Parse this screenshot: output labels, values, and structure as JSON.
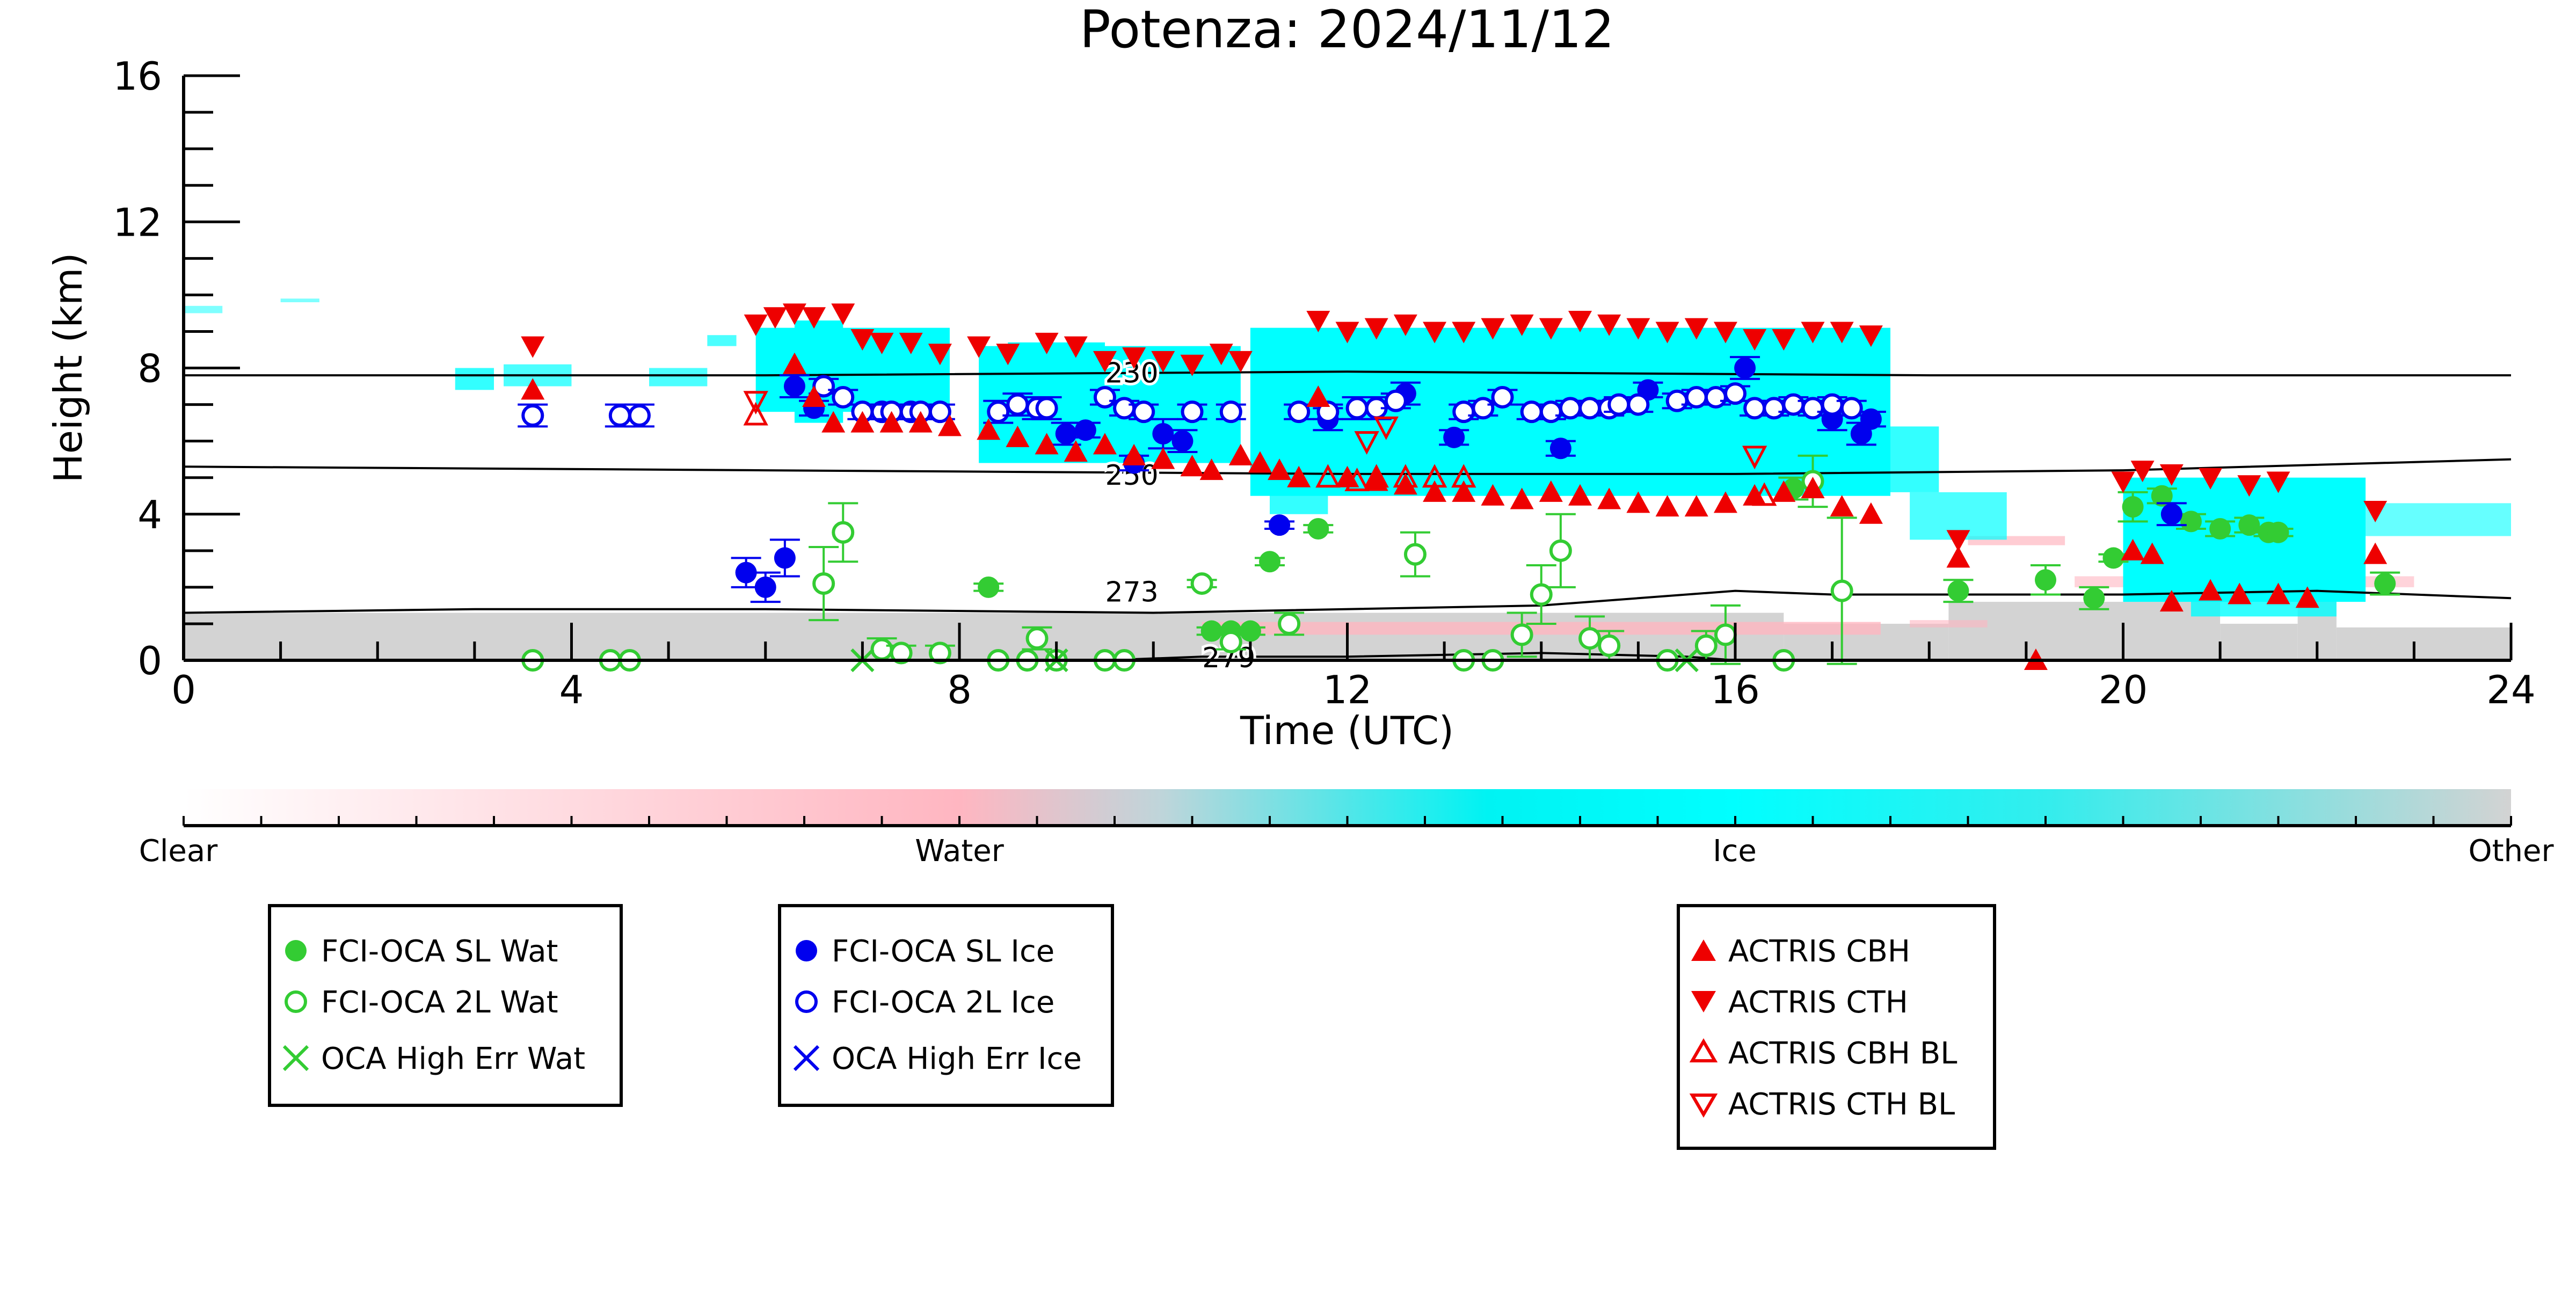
{
  "chart_data": {
    "type": "scatter",
    "title": "Potenza: 2024/11/12",
    "xlabel": "Time (UTC)",
    "ylabel": "Height (km)",
    "xlim": [
      0,
      24
    ],
    "ylim": [
      0,
      16
    ],
    "x_ticks": [
      "0",
      "4",
      "8",
      "12",
      "16",
      "20",
      "24"
    ],
    "y_ticks": [
      "0",
      "4",
      "8",
      "12",
      "16"
    ],
    "grid": false,
    "colorbar": {
      "labels": [
        "Clear",
        "Water",
        "Ice",
        "Other"
      ],
      "colors": [
        "#ffffff",
        "#ffb6c1",
        "#00ffff",
        "#d3d3d3"
      ]
    },
    "isotherms": [
      {
        "label": "230",
        "points": [
          [
            0,
            7.8
          ],
          [
            6,
            7.8
          ],
          [
            12,
            7.9
          ],
          [
            18,
            7.8
          ],
          [
            24,
            7.8
          ]
        ]
      },
      {
        "label": "250",
        "points": [
          [
            0,
            5.3
          ],
          [
            6,
            5.2
          ],
          [
            12,
            5.1
          ],
          [
            16,
            5.1
          ],
          [
            20,
            5.2
          ],
          [
            24,
            5.5
          ]
        ]
      },
      {
        "label": "273",
        "points": [
          [
            0,
            1.3
          ],
          [
            3,
            1.4
          ],
          [
            6,
            1.4
          ],
          [
            10,
            1.3
          ],
          [
            14,
            1.5
          ],
          [
            16,
            1.9
          ],
          [
            17,
            1.8
          ],
          [
            20,
            1.8
          ],
          [
            22,
            1.9
          ],
          [
            24,
            1.7
          ]
        ]
      },
      {
        "label": "279",
        "points": [
          [
            9.5,
            0
          ],
          [
            10.5,
            0.1
          ],
          [
            12,
            0.1
          ],
          [
            14,
            0.2
          ],
          [
            15.5,
            0.1
          ],
          [
            16,
            0
          ]
        ]
      }
    ],
    "series": [
      {
        "name": "FCI-OCA SL Wat",
        "color": "#33cc33",
        "marker": "filled-circle",
        "x": [
          8.3,
          10.6,
          10.8,
          11.0,
          11.2,
          11.7,
          16.6,
          18.3,
          19.2,
          19.7,
          19.9,
          20.1,
          20.4,
          20.7,
          21.0,
          21.3,
          21.5,
          21.6,
          22.7
        ],
        "y": [
          2.0,
          0.8,
          0.8,
          0.8,
          2.7,
          3.6,
          4.7,
          1.9,
          2.2,
          1.7,
          2.8,
          4.2,
          4.5,
          3.8,
          3.6,
          3.7,
          3.5,
          3.5,
          2.1
        ],
        "err": [
          0.1,
          0.1,
          0.1,
          0.1,
          0.1,
          0.1,
          0.3,
          0.3,
          0.4,
          0.3,
          0.1,
          0.4,
          0.2,
          0.2,
          0.2,
          0.2,
          0.1,
          0.1,
          0.3
        ]
      },
      {
        "name": "FCI-OCA 2L Wat",
        "color": "#33cc33",
        "marker": "open-circle",
        "x": [
          3.6,
          4.4,
          4.6,
          6.6,
          6.8,
          7.2,
          7.4,
          7.8,
          8.4,
          8.7,
          8.8,
          9.0,
          9.5,
          9.7,
          10.5,
          10.8,
          11.4,
          12.7,
          13.2,
          13.5,
          13.8,
          14.0,
          14.2,
          14.5,
          14.7,
          15.3,
          15.7,
          15.9,
          16.5,
          16.8,
          17.1
        ],
        "y": [
          0.0,
          0.0,
          0.0,
          2.1,
          3.5,
          0.3,
          0.2,
          0.2,
          0.0,
          0.0,
          0.6,
          0.0,
          0.0,
          0.0,
          2.1,
          0.5,
          1.0,
          2.9,
          0.0,
          0.0,
          0.7,
          1.8,
          3.0,
          0.6,
          0.4,
          0.0,
          0.4,
          0.7,
          0.0,
          4.9,
          1.9
        ],
        "err": [
          0.0,
          0.0,
          0.0,
          1.0,
          0.8,
          0.3,
          0.2,
          0.2,
          0.0,
          0.0,
          0.3,
          0.0,
          0.0,
          0.0,
          0.1,
          0.2,
          0.3,
          0.6,
          0.0,
          0.0,
          0.6,
          0.8,
          1.0,
          0.6,
          0.4,
          0.0,
          0.4,
          0.8,
          0.0,
          0.7,
          2.0
        ]
      },
      {
        "name": "OCA High Err Wat",
        "color": "#33cc33",
        "marker": "x",
        "x": [
          7.0,
          9.0,
          15.5
        ],
        "y": [
          0.0,
          0.0,
          0.0
        ]
      },
      {
        "name": "FCI-OCA SL Ice",
        "color": "#0000ee",
        "marker": "filled-circle",
        "x": [
          5.8,
          6.0,
          6.2,
          6.3,
          6.5,
          9.1,
          9.3,
          9.8,
          10.1,
          10.3,
          11.3,
          11.8,
          12.6,
          13.1,
          14.2,
          15.1,
          16.1,
          17.0,
          17.3,
          17.4,
          20.5
        ],
        "y": [
          2.4,
          2.0,
          2.8,
          7.5,
          6.9,
          6.2,
          6.3,
          5.4,
          6.2,
          6.0,
          3.7,
          6.6,
          7.3,
          6.1,
          5.8,
          7.4,
          8.0,
          6.6,
          6.2,
          6.6,
          4.0
        ],
        "err": [
          0.4,
          0.4,
          0.5,
          0.3,
          0.2,
          0.3,
          0.2,
          0.2,
          0.4,
          0.3,
          0.1,
          0.3,
          0.3,
          0.2,
          0.2,
          0.2,
          0.3,
          0.3,
          0.3,
          0.2,
          0.3
        ]
      },
      {
        "name": "FCI-OCA 2L Ice",
        "color": "#0000ee",
        "marker": "open-circle",
        "x": [
          3.6,
          4.5,
          4.7,
          6.6,
          6.8,
          7.0,
          7.2,
          7.3,
          7.5,
          7.6,
          7.8,
          8.4,
          8.6,
          8.8,
          8.9,
          9.5,
          9.7,
          9.9,
          10.4,
          10.8,
          11.5,
          11.8,
          12.1,
          12.3,
          12.5,
          13.2,
          13.4,
          13.6,
          13.9,
          14.1,
          14.3,
          14.5,
          14.7,
          14.8,
          15.0,
          15.4,
          15.6,
          15.8,
          16.0,
          16.2,
          16.4,
          16.6,
          16.8,
          17.0,
          17.2
        ],
        "y": [
          6.7,
          6.7,
          6.7,
          7.5,
          7.2,
          6.8,
          6.8,
          6.8,
          6.8,
          6.8,
          6.8,
          6.8,
          7.0,
          6.9,
          6.9,
          7.2,
          6.9,
          6.8,
          6.8,
          6.8,
          6.8,
          6.8,
          6.9,
          6.9,
          7.1,
          6.8,
          6.9,
          7.2,
          6.8,
          6.8,
          6.9,
          6.9,
          6.9,
          7.0,
          7.0,
          7.1,
          7.2,
          7.2,
          7.3,
          6.9,
          6.9,
          7.0,
          6.9,
          7.0,
          6.9
        ],
        "err": [
          0.3,
          0.3,
          0.3,
          0.2,
          0.2,
          0.2,
          0.2,
          0.2,
          0.2,
          0.2,
          0.2,
          0.3,
          0.3,
          0.3,
          0.3,
          0.2,
          0.2,
          0.2,
          0.2,
          0.2,
          0.2,
          0.2,
          0.3,
          0.3,
          0.2,
          0.2,
          0.2,
          0.2,
          0.2,
          0.2,
          0.2,
          0.2,
          0.2,
          0.2,
          0.2,
          0.2,
          0.2,
          0.2,
          0.2,
          0.2,
          0.2,
          0.2,
          0.2,
          0.2,
          0.2
        ]
      },
      {
        "name": "OCA High Err Ice",
        "color": "#0000ee",
        "marker": "x",
        "x": [],
        "y": []
      },
      {
        "name": "ACTRIS CBH",
        "color": "#ee0000",
        "marker": "triangle-up",
        "x": [
          3.6,
          6.3,
          6.5,
          6.7,
          7.0,
          7.3,
          7.6,
          7.9,
          8.3,
          8.6,
          8.9,
          9.2,
          9.5,
          9.8,
          10.1,
          10.4,
          10.6,
          10.9,
          11.1,
          11.3,
          11.5,
          11.7,
          12.0,
          12.3,
          12.6,
          12.9,
          13.2,
          13.5,
          13.8,
          14.1,
          14.4,
          14.7,
          15.0,
          15.3,
          15.6,
          15.9,
          16.2,
          16.5,
          16.8,
          17.1,
          17.4,
          18.3,
          19.1,
          20.1,
          20.3,
          20.5,
          20.9,
          21.2,
          21.6,
          21.9,
          22.6
        ],
        "y": [
          7.4,
          8.1,
          7.2,
          6.5,
          6.5,
          6.5,
          6.5,
          6.4,
          6.3,
          6.1,
          5.9,
          5.7,
          5.9,
          5.6,
          5.5,
          5.3,
          5.2,
          5.6,
          5.4,
          5.2,
          5.0,
          7.2,
          5.0,
          4.9,
          4.8,
          4.6,
          4.6,
          4.5,
          4.4,
          4.6,
          4.5,
          4.4,
          4.3,
          4.2,
          4.2,
          4.3,
          4.5,
          4.6,
          4.7,
          4.2,
          4.0,
          2.8,
          0.0,
          3.0,
          2.9,
          1.6,
          1.9,
          1.8,
          1.8,
          1.7,
          2.9
        ]
      },
      {
        "name": "ACTRIS CTH",
        "color": "#ee0000",
        "marker": "triangle-down",
        "x": [
          3.6,
          5.9,
          6.1,
          6.3,
          6.5,
          6.8,
          7.0,
          7.2,
          7.5,
          7.8,
          8.2,
          8.5,
          8.9,
          9.2,
          9.5,
          9.8,
          10.1,
          10.4,
          10.7,
          10.9,
          11.7,
          12.0,
          12.3,
          12.6,
          12.9,
          13.2,
          13.5,
          13.8,
          14.1,
          14.4,
          14.7,
          15.0,
          15.3,
          15.6,
          15.9,
          16.2,
          16.5,
          16.8,
          17.1,
          17.4,
          18.3,
          20.0,
          20.2,
          20.5,
          20.9,
          21.3,
          21.6,
          22.6
        ],
        "y": [
          8.6,
          9.2,
          9.4,
          9.5,
          9.4,
          9.5,
          8.8,
          8.7,
          8.7,
          8.4,
          8.6,
          8.4,
          8.7,
          8.6,
          8.2,
          8.3,
          8.2,
          8.1,
          8.4,
          8.2,
          9.3,
          9.0,
          9.1,
          9.2,
          9.0,
          9.0,
          9.1,
          9.2,
          9.1,
          9.3,
          9.2,
          9.1,
          9.0,
          9.1,
          9.0,
          8.8,
          8.8,
          9.0,
          9.0,
          8.9,
          3.3,
          4.9,
          5.2,
          5.1,
          5.0,
          4.8,
          4.9,
          4.1
        ]
      },
      {
        "name": "ACTRIS CBH BL",
        "color": "#ee0000",
        "marker": "open-triangle-up",
        "x": [
          5.9,
          11.8,
          12.1,
          12.3,
          12.6,
          12.9,
          13.2,
          16.3
        ],
        "y": [
          6.7,
          5.0,
          4.9,
          5.0,
          5.0,
          5.0,
          5.0,
          4.5
        ]
      },
      {
        "name": "ACTRIS CTH BL",
        "color": "#ee0000",
        "marker": "open-triangle-down",
        "x": [
          5.9,
          12.2,
          12.4,
          16.2
        ],
        "y": [
          7.1,
          6.0,
          6.4,
          5.6
        ]
      }
    ]
  }
}
